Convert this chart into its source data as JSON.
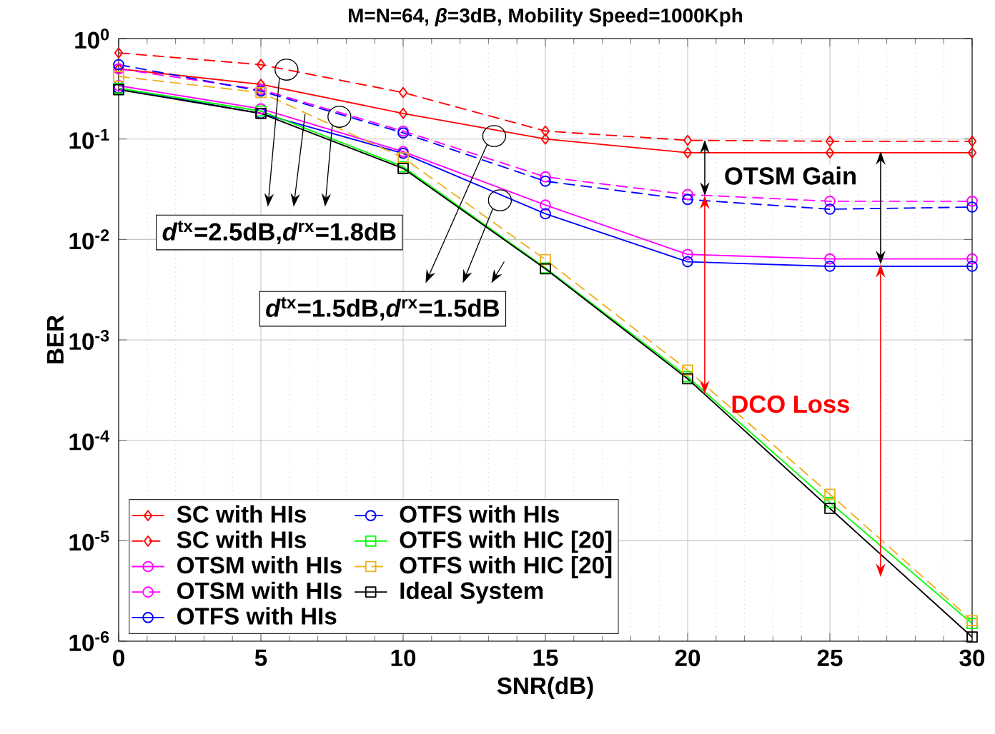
{
  "chart_data": {
    "type": "line",
    "title": "M=N=64, *β*=3dB, Mobility Speed=1000Kph",
    "xlabel": "SNR(dB)",
    "ylabel": "BER",
    "x": [
      0,
      5,
      10,
      15,
      20,
      25,
      30
    ],
    "series": [
      {
        "name": "SC with HIs",
        "color": "#ff0000",
        "marker": "diamond",
        "line_style": "solid",
        "values": [
          0.5,
          0.35,
          0.18,
          0.1,
          0.073,
          0.073,
          0.073
        ]
      },
      {
        "name": "SC with HIs",
        "color": "#ff0000",
        "marker": "diamond",
        "line_style": "dashed",
        "values": [
          0.72,
          0.55,
          0.29,
          0.12,
          0.097,
          0.095,
          0.095
        ]
      },
      {
        "name": "OTSM with HIs",
        "color": "#ff00ff",
        "marker": "circle",
        "line_style": "solid",
        "values": [
          0.34,
          0.2,
          0.075,
          0.022,
          0.0071,
          0.0064,
          0.0064
        ]
      },
      {
        "name": "OTSM with HIs",
        "color": "#ff00ff",
        "marker": "circle",
        "line_style": "dashed",
        "values": [
          0.5,
          0.31,
          0.12,
          0.042,
          0.028,
          0.024,
          0.024
        ]
      },
      {
        "name": "OTFS with HIs",
        "color": "#0000ff",
        "marker": "circle",
        "line_style": "solid",
        "values": [
          0.32,
          0.18,
          0.072,
          0.018,
          0.006,
          0.0054,
          0.0054
        ]
      },
      {
        "name": "OTFS with HIs",
        "color": "#0000ff",
        "marker": "circle",
        "line_style": "dashed",
        "values": [
          0.55,
          0.3,
          0.115,
          0.038,
          0.025,
          0.02,
          0.021
        ]
      },
      {
        "name": "OTFS with HIC [20]",
        "color": "#00ff00",
        "marker": "square",
        "line_style": "solid",
        "values": [
          0.32,
          0.19,
          0.053,
          0.0052,
          0.00043,
          2.4e-05,
          1.5e-06
        ]
      },
      {
        "name": "OTFS with HIC [20]",
        "color": "#edb120",
        "marker": "square",
        "line_style": "dashed",
        "values": [
          0.42,
          0.29,
          0.065,
          0.0063,
          0.0005,
          2.9e-05,
          1.6e-06
        ]
      },
      {
        "name": "Ideal System",
        "color": "#000000",
        "marker": "square",
        "line_style": "solid",
        "values": [
          0.31,
          0.18,
          0.051,
          0.0051,
          0.00041,
          2.1e-05,
          1.1e-06
        ]
      }
    ],
    "log": "y",
    "xlim": [
      0,
      30
    ],
    "ylim": [
      1e-06,
      1
    ],
    "xticks": [
      0,
      5,
      10,
      15,
      20,
      25,
      30
    ],
    "yticks": [
      {
        "value": 1e-06,
        "label": "10$^{-6}$"
      },
      {
        "value": 1e-05,
        "label": "10$^{-5}$"
      },
      {
        "value": 0.0001,
        "label": "10$^{-4}$"
      },
      {
        "value": 0.001,
        "label": "10$^{-3}$"
      },
      {
        "value": 0.01,
        "label": "10$^{-2}$"
      },
      {
        "value": 0.1,
        "label": "10$^{-1}$"
      },
      {
        "value": 1,
        "label": "10$^{0}$"
      }
    ],
    "grid": true,
    "legend": "bottom left",
    "annotations": [
      {
        "text": "*d*$^{tx}$=2.5dB,*d*$^{rx}$=1.8dB",
        "x": 5.9,
        "y": 0.49
      },
      {
        "text": "*d*$^{tx}$=1.5dB,*d*$^{rx}$=1.5dB",
        "x": 13.2,
        "y": 0.107
      },
      "OTSM Gain",
      {
        "text": "DCO Loss",
        "x": 20.6,
        "y": 0.00029
      }
    ]
  }
}
